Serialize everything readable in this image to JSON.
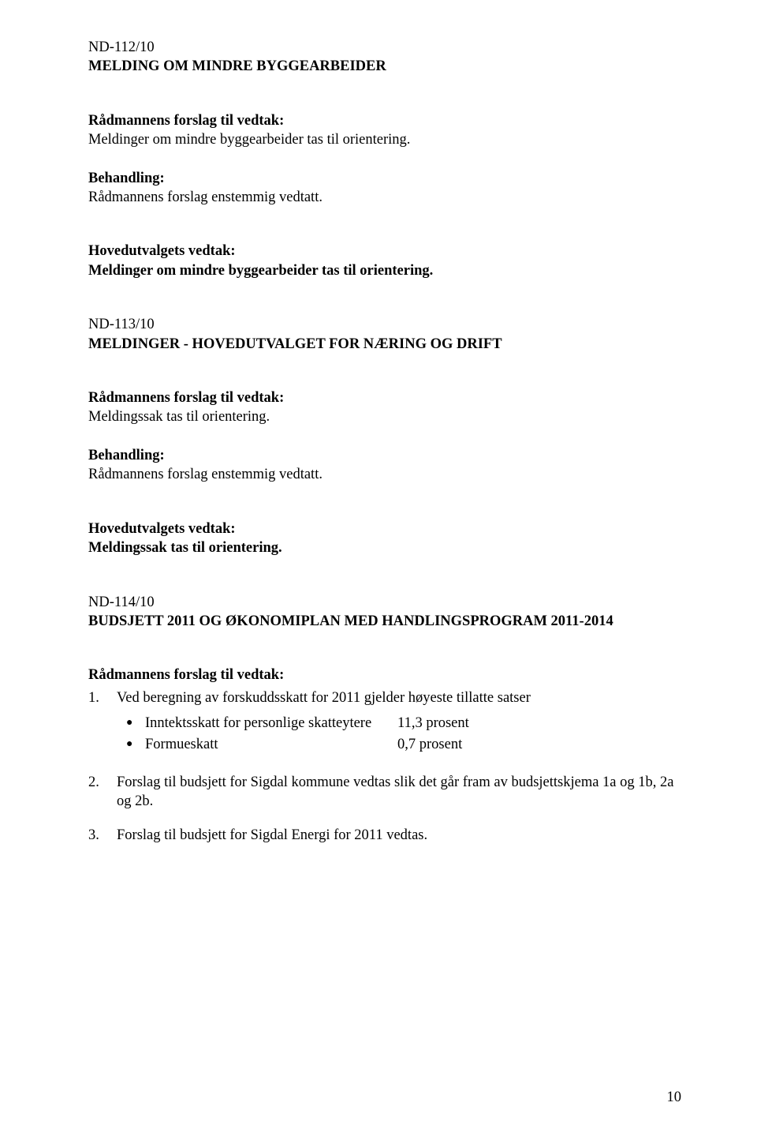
{
  "colors": {
    "text": "#000000",
    "background": "#ffffff"
  },
  "typography": {
    "font_family": "Times New Roman",
    "body_fontsize_pt": 14,
    "line_height": 1.32
  },
  "section1": {
    "ref": "ND-112/10",
    "title": "MELDING OM MINDRE BYGGEARBEIDER",
    "proposal_heading": "Rådmannens forslag til vedtak:",
    "proposal_text": "Meldinger om mindre byggearbeider tas til orientering.",
    "processing_heading": "Behandling:",
    "processing_text": "Rådmannens forslag enstemmig vedtatt.",
    "decision_heading": "Hovedutvalgets vedtak:",
    "decision_text": "Meldinger om mindre byggearbeider tas til orientering."
  },
  "section2": {
    "ref": "ND-113/10",
    "title": "MELDINGER -  HOVEDUTVALGET FOR NÆRING OG DRIFT",
    "proposal_heading": "Rådmannens forslag til vedtak:",
    "proposal_text": "Meldingssak tas til orientering.",
    "processing_heading": "Behandling:",
    "processing_text": "Rådmannens forslag enstemmig vedtatt.",
    "decision_heading": "Hovedutvalgets vedtak:",
    "decision_text": "Meldingssak tas til orientering."
  },
  "section3": {
    "ref": "ND-114/10",
    "title": "BUDSJETT 2011 OG ØKONOMIPLAN MED HANDLINGSPROGRAM 2011-2014",
    "proposal_heading": "Rådmannens forslag til vedtak:",
    "items": [
      {
        "num": "1.",
        "text": "Ved beregning av forskuddsskatt for 2011 gjelder høyeste tillatte satser",
        "bullets": [
          {
            "label": "Inntektsskatt for personlige skatteytere",
            "value": "11,3 prosent"
          },
          {
            "label": "Formueskatt",
            "value": "0,7 prosent"
          }
        ]
      },
      {
        "num": "2.",
        "text": "Forslag til budsjett for Sigdal kommune vedtas slik det går fram av budsjettskjema 1a og 1b, 2a og 2b."
      },
      {
        "num": "3.",
        "text": "Forslag til budsjett for Sigdal Energi for 2011 vedtas."
      }
    ]
  },
  "page_number": "10"
}
